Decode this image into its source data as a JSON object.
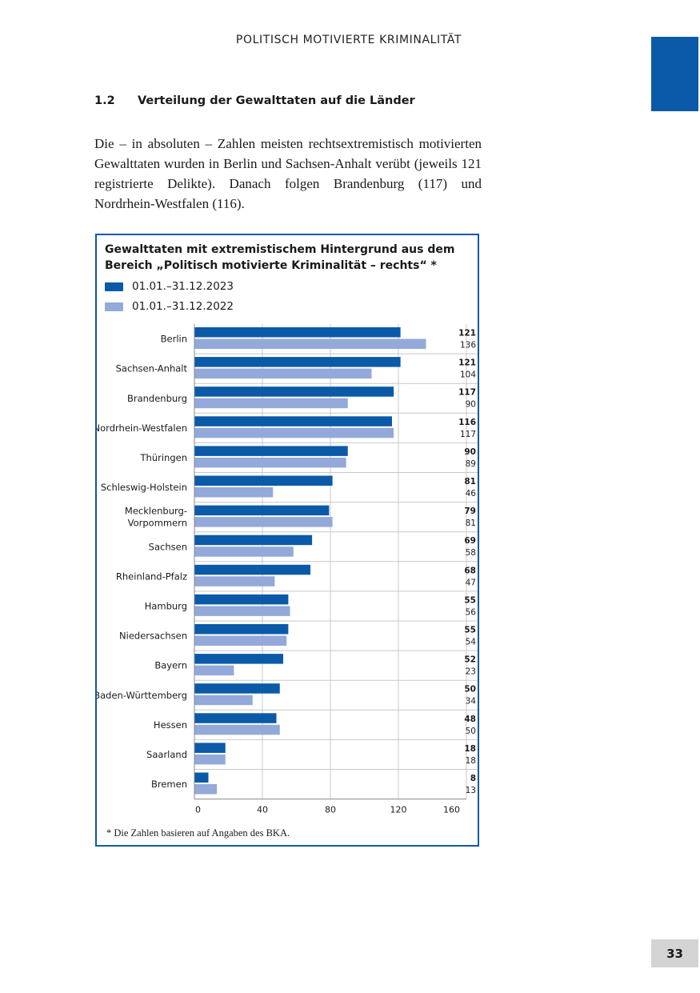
{
  "header": {
    "running_title": "POLITISCH MOTIVIERTE KRIMINALITÄT"
  },
  "section": {
    "number": "1.2",
    "title": "Verteilung der Gewalttaten auf die Länder",
    "paragraph": "Die – in absoluten – Zahlen meisten rechtsextremistisch motivierten Gewalttaten wurden in Berlin und Sachsen-Anhalt verübt (jeweils 121 registrierte Delikte). Danach folgen Brandenburg (117) und Nordrhein-Westfalen (116)."
  },
  "chart_data": {
    "type": "bar",
    "orientation": "horizontal",
    "title": "Gewalttaten mit extremistischem Hintergrund aus dem Bereich „Politisch motivierte Kriminalität – rechts“ *",
    "categories": [
      "Berlin",
      "Sachsen-Anhalt",
      "Brandenburg",
      "Nordrhein-Westfalen",
      "Thüringen",
      "Schleswig-Holstein",
      "Mecklenburg-Vorpommern",
      "Sachsen",
      "Rheinland-Pfalz",
      "Hamburg",
      "Niedersachsen",
      "Bayern",
      "Baden-Württemberg",
      "Hessen",
      "Saarland",
      "Bremen"
    ],
    "category_lines": [
      [
        "Berlin"
      ],
      [
        "Sachsen-Anhalt"
      ],
      [
        "Brandenburg"
      ],
      [
        "Nordrhein-Westfalen"
      ],
      [
        "Thüringen"
      ],
      [
        "Schleswig-Holstein"
      ],
      [
        "Mecklenburg-",
        "Vorpommern"
      ],
      [
        "Sachsen"
      ],
      [
        "Rheinland-Pfalz"
      ],
      [
        "Hamburg"
      ],
      [
        "Niedersachsen"
      ],
      [
        "Bayern"
      ],
      [
        "Baden-Württemberg"
      ],
      [
        "Hessen"
      ],
      [
        "Saarland"
      ],
      [
        "Bremen"
      ]
    ],
    "series": [
      {
        "name": "01.01.–31.12.2023",
        "color": "#0b5aa8",
        "values": [
          121,
          121,
          117,
          116,
          90,
          81,
          79,
          69,
          68,
          55,
          55,
          52,
          50,
          48,
          18,
          8
        ]
      },
      {
        "name": "01.01.–31.12.2022",
        "color": "#93a9da",
        "values": [
          136,
          104,
          90,
          117,
          89,
          46,
          81,
          58,
          47,
          56,
          54,
          23,
          34,
          50,
          18,
          13
        ]
      }
    ],
    "xlim": [
      0,
      160
    ],
    "xticks": [
      0,
      40,
      80,
      120,
      160
    ],
    "grid": true,
    "legend": "top-left",
    "footnote": "*  Die Zahlen basieren auf Angaben des BKA."
  },
  "page": {
    "number": "33"
  },
  "colors": {
    "accent": "#0b5aa8",
    "accent_light": "#93a9da",
    "page_badge": "#d4d4d4"
  }
}
